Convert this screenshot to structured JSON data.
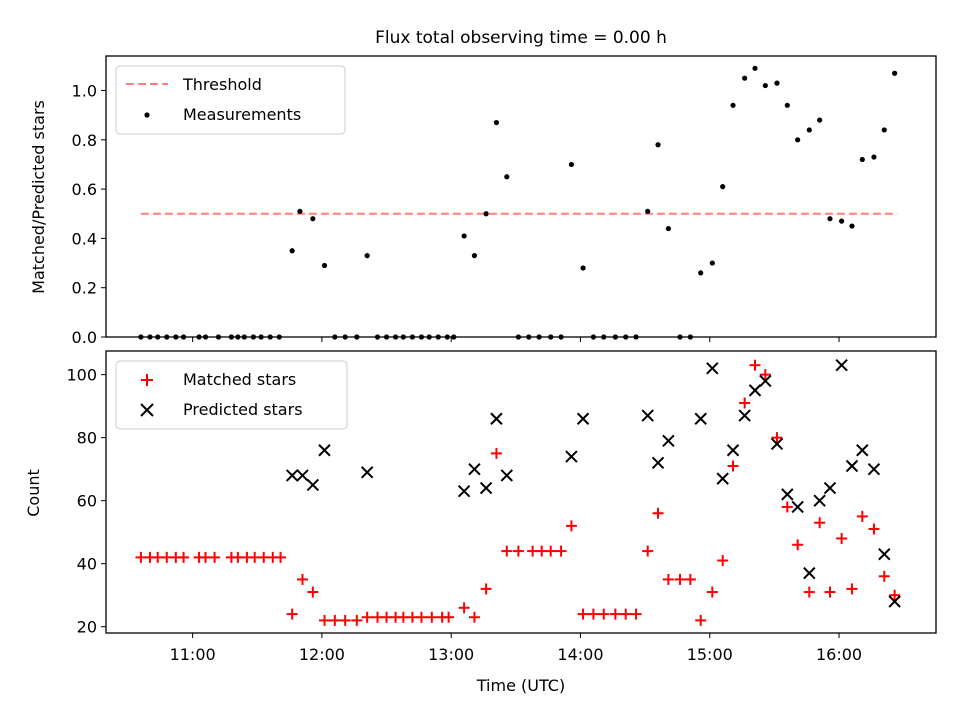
{
  "chart_data": [
    {
      "type": "scatter",
      "title": "Flux total observing time = 0.00 h",
      "xlabel": "",
      "ylabel": "Matched/Predicted stars",
      "xlim": [
        10.33,
        16.75
      ],
      "ylim": [
        0,
        1.14
      ],
      "yticks": [
        0.0,
        0.2,
        0.4,
        0.6,
        0.8,
        1.0
      ],
      "ytick_labels": [
        "0.0",
        "0.2",
        "0.4",
        "0.6",
        "0.8",
        "1.0"
      ],
      "legend": [
        "Threshold",
        "Measurements"
      ],
      "legend_position": "top-left",
      "threshold": {
        "name": "Threshold",
        "value": 0.5,
        "x": [
          10.6,
          16.45
        ],
        "color": "#ff7f7f"
      },
      "series": [
        {
          "name": "Measurements",
          "color": "#000000",
          "x": [
            10.6,
            10.67,
            10.73,
            10.8,
            10.87,
            10.93,
            11.05,
            11.1,
            11.2,
            11.3,
            11.35,
            11.4,
            11.47,
            11.53,
            11.6,
            11.67,
            11.77,
            11.83,
            11.93,
            12.02,
            12.1,
            12.18,
            12.27,
            12.35,
            12.43,
            12.5,
            12.57,
            12.63,
            12.7,
            12.77,
            12.83,
            12.9,
            12.97,
            13.02,
            13.1,
            13.18,
            13.27,
            13.35,
            13.43,
            13.52,
            13.6,
            13.68,
            13.77,
            13.85,
            13.93,
            14.02,
            14.1,
            14.18,
            14.27,
            14.35,
            14.43,
            14.52,
            14.6,
            14.68,
            14.77,
            14.85,
            14.93,
            15.02,
            15.1,
            15.18,
            15.27,
            15.35,
            15.43,
            15.52,
            15.6,
            15.68,
            15.77,
            15.85,
            15.93,
            16.02,
            16.1,
            16.18,
            16.27,
            16.35,
            16.43
          ],
          "y": [
            0,
            0,
            0,
            0,
            0,
            0,
            0,
            0,
            0,
            0,
            0,
            0,
            0,
            0,
            0,
            0,
            0.35,
            0.51,
            0.48,
            0.29,
            0,
            0,
            0,
            0.33,
            0,
            0,
            0,
            0,
            0,
            0,
            0,
            0,
            0,
            0,
            0.41,
            0.33,
            0.5,
            0.87,
            0.65,
            0,
            0,
            0,
            0,
            0,
            0.7,
            0.28,
            0,
            0,
            0,
            0,
            0,
            0.51,
            0.78,
            0.44,
            0,
            0,
            0.26,
            0.3,
            0.61,
            0.94,
            1.05,
            1.09,
            1.02,
            1.03,
            0.94,
            0.8,
            0.84,
            0.88,
            0.48,
            0.47,
            0.45,
            0.72,
            0.73,
            0.84,
            1.07
          ]
        }
      ]
    },
    {
      "type": "scatter",
      "title": "",
      "xlabel": "Time (UTC)",
      "ylabel": "Count",
      "xlim": [
        10.33,
        16.75
      ],
      "ylim": [
        18,
        107.5
      ],
      "xticks": [
        11,
        12,
        13,
        14,
        15,
        16
      ],
      "xtick_labels": [
        "11:00",
        "12:00",
        "13:00",
        "14:00",
        "15:00",
        "16:00"
      ],
      "yticks": [
        20,
        40,
        60,
        80,
        100
      ],
      "ytick_labels": [
        "20",
        "40",
        "60",
        "80",
        "100"
      ],
      "legend": [
        "Matched stars",
        "Predicted stars"
      ],
      "legend_position": "top-left",
      "series": [
        {
          "name": "Matched stars",
          "marker": "+",
          "color": "#ff0000",
          "x": [
            10.6,
            10.67,
            10.73,
            10.8,
            10.87,
            10.93,
            11.05,
            11.1,
            11.17,
            11.3,
            11.35,
            11.42,
            11.48,
            11.55,
            11.62,
            11.68,
            11.77,
            11.85,
            11.93,
            12.02,
            12.1,
            12.18,
            12.27,
            12.35,
            12.43,
            12.5,
            12.57,
            12.63,
            12.7,
            12.77,
            12.85,
            12.93,
            12.98,
            13.1,
            13.18,
            13.27,
            13.35,
            13.43,
            13.52,
            13.63,
            13.7,
            13.77,
            13.85,
            13.93,
            14.02,
            14.1,
            14.18,
            14.27,
            14.35,
            14.43,
            14.52,
            14.6,
            14.68,
            14.77,
            14.85,
            14.93,
            15.02,
            15.1,
            15.18,
            15.27,
            15.35,
            15.43,
            15.52,
            15.6,
            15.68,
            15.77,
            15.85,
            15.93,
            16.02,
            16.1,
            16.18,
            16.27,
            16.35,
            16.43
          ],
          "y": [
            42,
            42,
            42,
            42,
            42,
            42,
            42,
            42,
            42,
            42,
            42,
            42,
            42,
            42,
            42,
            42,
            24,
            35,
            31,
            22,
            22,
            22,
            22,
            23,
            23,
            23,
            23,
            23,
            23,
            23,
            23,
            23,
            23,
            26,
            23,
            32,
            75,
            44,
            44,
            44,
            44,
            44,
            44,
            52,
            24,
            24,
            24,
            24,
            24,
            24,
            44,
            56,
            35,
            35,
            35,
            22,
            31,
            41,
            71,
            91,
            103,
            100,
            80,
            58,
            46,
            31,
            53,
            31,
            48,
            32,
            55,
            51,
            36,
            30
          ]
        },
        {
          "name": "Predicted stars",
          "marker": "x",
          "color": "#000000",
          "x": [
            11.77,
            11.85,
            11.93,
            12.02,
            12.35,
            13.1,
            13.18,
            13.27,
            13.35,
            13.43,
            13.93,
            14.02,
            14.52,
            14.6,
            14.68,
            14.93,
            15.02,
            15.1,
            15.18,
            15.27,
            15.35,
            15.43,
            15.52,
            15.6,
            15.68,
            15.77,
            15.85,
            15.93,
            16.02,
            16.1,
            16.18,
            16.27,
            16.35,
            16.43
          ],
          "y": [
            68,
            68,
            65,
            76,
            69,
            63,
            70,
            64,
            86,
            68,
            74,
            86,
            87,
            72,
            79,
            86,
            102,
            67,
            76,
            87,
            95,
            98,
            78,
            62,
            58,
            37,
            60,
            64,
            103,
            71,
            76,
            70,
            43,
            28
          ]
        }
      ]
    }
  ]
}
